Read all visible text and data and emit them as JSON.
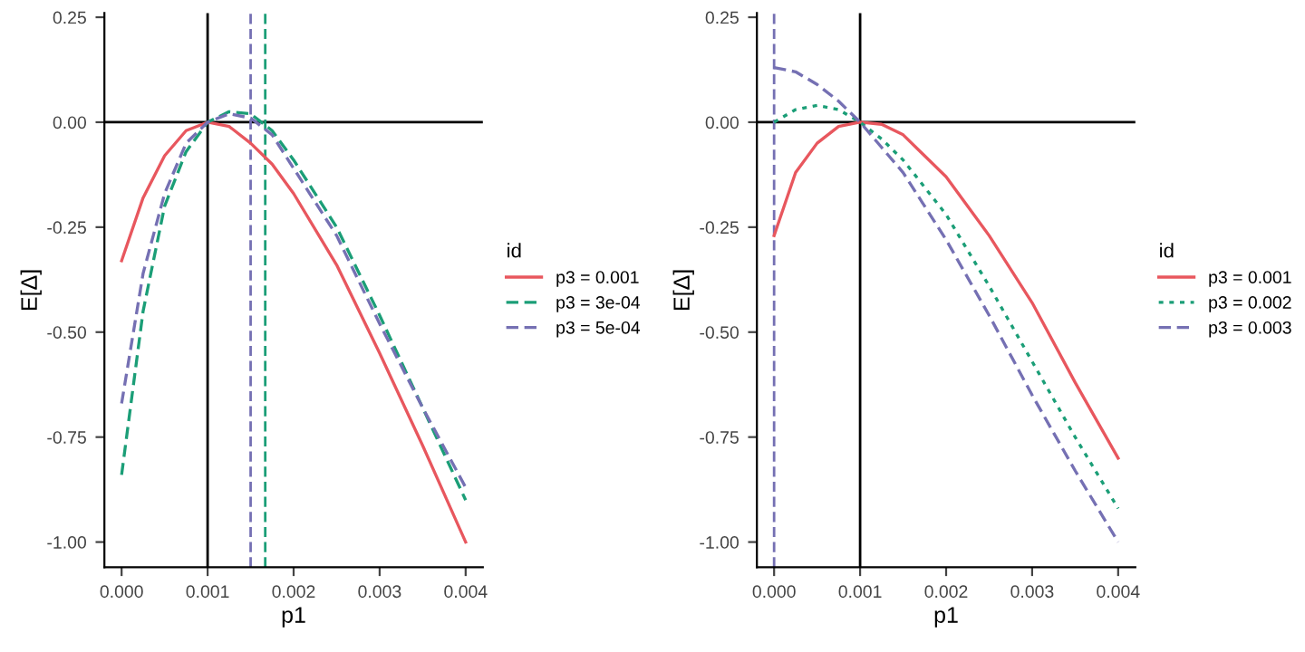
{
  "chart_data": [
    {
      "type": "line",
      "xlabel": "p1",
      "ylabel": "E[Δ]",
      "legend_title": "id",
      "legend": "right",
      "grid": false,
      "xlim": [
        -0.0002,
        0.0042
      ],
      "ylim": [
        -1.06,
        0.26
      ],
      "xticks": [
        {
          "value": 0,
          "label": "0.000"
        },
        {
          "value": 0.001,
          "label": "0.001"
        },
        {
          "value": 0.002,
          "label": "0.002"
        },
        {
          "value": 0.003,
          "label": "0.003"
        },
        {
          "value": 0.004,
          "label": "0.004"
        }
      ],
      "yticks": [
        {
          "value": 0.25,
          "label": "0.25"
        },
        {
          "value": 0,
          "label": "0.00"
        },
        {
          "value": -0.25,
          "label": "-0.25"
        },
        {
          "value": -0.5,
          "label": "-0.50"
        },
        {
          "value": -0.75,
          "label": "-0.75"
        },
        {
          "value": -1,
          "label": "-1.00"
        }
      ],
      "x": [
        0,
        0.00025,
        0.0005,
        0.00075,
        0.001,
        0.00125,
        0.0015,
        0.00175,
        0.002,
        0.0025,
        0.003,
        0.0035,
        0.004
      ],
      "series": [
        {
          "name": "p3 = 0.001",
          "color": "#e8575e",
          "line_style": "solid",
          "values": [
            -0.33,
            -0.18,
            -0.08,
            -0.02,
            0.0,
            -0.01,
            -0.05,
            -0.1,
            -0.17,
            -0.34,
            -0.55,
            -0.77,
            -1.0
          ]
        },
        {
          "name": "p3 = 3e-04",
          "color": "#1b9e77",
          "line_style": "dashed",
          "values": [
            -0.84,
            -0.45,
            -0.2,
            -0.07,
            0.0,
            0.025,
            0.02,
            -0.02,
            -0.09,
            -0.25,
            -0.46,
            -0.68,
            -0.9
          ]
        },
        {
          "name": "p3 = 5e-04",
          "color": "#7570b3",
          "line_style": "dashed",
          "values": [
            -0.67,
            -0.36,
            -0.17,
            -0.05,
            0.0,
            0.02,
            0.01,
            -0.03,
            -0.11,
            -0.27,
            -0.48,
            -0.68,
            -0.87
          ]
        }
      ],
      "ref_lines": [
        {
          "axis": "x",
          "value": 0.001,
          "color": "#000000",
          "line_style": "solid"
        },
        {
          "axis": "y",
          "value": 0,
          "color": "#000000",
          "line_style": "solid"
        },
        {
          "axis": "x",
          "value": 0.0015,
          "color": "#7570b3",
          "line_style": "dashed"
        },
        {
          "axis": "x",
          "value": 0.00167,
          "color": "#1b9e77",
          "line_style": "dashed"
        }
      ]
    },
    {
      "type": "line",
      "xlabel": "p1",
      "ylabel": "E[Δ]",
      "legend_title": "id",
      "legend": "right",
      "grid": false,
      "xlim": [
        -0.0002,
        0.0042
      ],
      "ylim": [
        -1.06,
        0.26
      ],
      "xticks": [
        {
          "value": 0,
          "label": "0.000"
        },
        {
          "value": 0.001,
          "label": "0.001"
        },
        {
          "value": 0.002,
          "label": "0.002"
        },
        {
          "value": 0.003,
          "label": "0.003"
        },
        {
          "value": 0.004,
          "label": "0.004"
        }
      ],
      "yticks": [
        {
          "value": 0.25,
          "label": "0.25"
        },
        {
          "value": 0,
          "label": "0.00"
        },
        {
          "value": -0.25,
          "label": "-0.25"
        },
        {
          "value": -0.5,
          "label": "-0.50"
        },
        {
          "value": -0.75,
          "label": "-0.75"
        },
        {
          "value": -1,
          "label": "-1.00"
        }
      ],
      "x": [
        0,
        0.00025,
        0.0005,
        0.00075,
        0.001,
        0.00125,
        0.0015,
        0.002,
        0.0025,
        0.003,
        0.0035,
        0.004
      ],
      "series": [
        {
          "name": "p3 = 0.001",
          "color": "#e8575e",
          "line_style": "solid",
          "values": [
            -0.27,
            -0.12,
            -0.05,
            -0.01,
            0.0,
            -0.005,
            -0.03,
            -0.13,
            -0.27,
            -0.43,
            -0.62,
            -0.8
          ]
        },
        {
          "name": "p3 = 0.002",
          "color": "#1b9e77",
          "line_style": "dotted",
          "values": [
            0.0,
            0.03,
            0.04,
            0.03,
            0.0,
            -0.04,
            -0.09,
            -0.22,
            -0.39,
            -0.57,
            -0.75,
            -0.92
          ]
        },
        {
          "name": "p3 = 0.003",
          "color": "#7570b3",
          "line_style": "dashed",
          "values": [
            0.13,
            0.12,
            0.09,
            0.05,
            0.0,
            -0.06,
            -0.12,
            -0.28,
            -0.46,
            -0.65,
            -0.83,
            -1.0
          ]
        }
      ],
      "ref_lines": [
        {
          "axis": "x",
          "value": 0.001,
          "color": "#000000",
          "line_style": "solid"
        },
        {
          "axis": "y",
          "value": 0,
          "color": "#000000",
          "line_style": "solid"
        },
        {
          "axis": "x",
          "value": 0,
          "color": "#7570b3",
          "line_style": "dashed"
        }
      ]
    }
  ]
}
